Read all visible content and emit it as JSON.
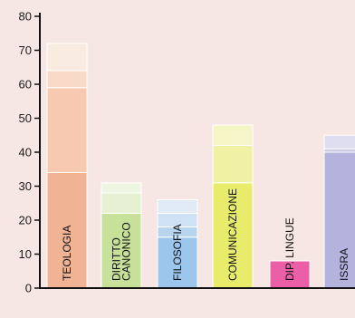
{
  "chart_data": {
    "type": "bar",
    "stacked": true,
    "categories": [
      {
        "lines": [
          "TEOLOGIA"
        ],
        "segments": [
          34,
          25,
          5,
          8
        ],
        "colors": [
          "#f0b393",
          "#f6c9b0",
          "#f9d9c8",
          "#faebe0"
        ]
      },
      {
        "lines": [
          "DIRITTO",
          "CANONICO"
        ],
        "segments": [
          22,
          0,
          6,
          3
        ],
        "colors": [
          "#c7e09a",
          "#dcebc2",
          "#e6f1d4",
          "#eef5e2"
        ]
      },
      {
        "lines": [
          "FILOSOFIA"
        ],
        "segments": [
          15,
          3,
          4,
          4
        ],
        "colors": [
          "#9cc6ec",
          "#b8d5ef",
          "#cfe1f4",
          "#e0ebf6"
        ]
      },
      {
        "lines": [
          "COMUNICAZIONE"
        ],
        "segments": [
          31,
          11,
          6
        ],
        "colors": [
          "#e8ec6a",
          "#f0f1a4",
          "#f5f5c8"
        ]
      },
      {
        "lines": [
          "DIP. LINGUE"
        ],
        "segments": [
          8
        ],
        "colors": [
          "#ea5fa6"
        ]
      },
      {
        "lines": [
          "ISSRA"
        ],
        "segments": [
          40,
          1,
          4
        ],
        "colors": [
          "#b3b3de",
          "#cbcbe8",
          "#dedef0"
        ]
      }
    ],
    "ylim": [
      0,
      80
    ],
    "yticks": [
      0,
      10,
      20,
      30,
      40,
      50,
      60,
      70,
      80
    ],
    "title": "",
    "xlabel": "",
    "ylabel": "",
    "grid": false,
    "legend": "none"
  }
}
